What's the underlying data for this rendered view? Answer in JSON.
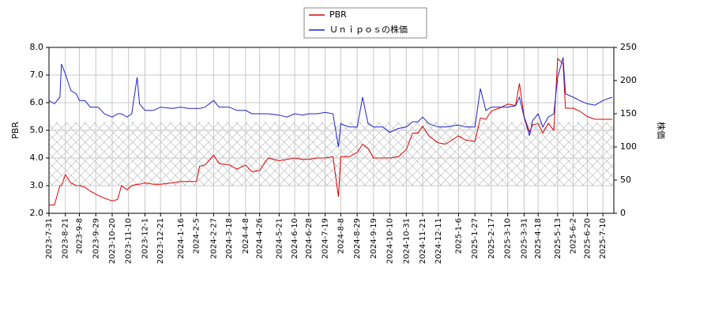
{
  "chart_data": {
    "type": "line",
    "legend": "top",
    "y_label": "PBR",
    "y2_label": "株価",
    "grid": true,
    "shaded_range": [
      3.0,
      5.3
    ],
    "xlim": [
      "2023-7-31",
      "2025-7-24"
    ],
    "ylim": [
      2.0,
      8.0
    ],
    "yticks": [
      {
        "value": 2,
        "label": "2.0"
      },
      {
        "value": 3,
        "label": "3.0"
      },
      {
        "value": 4,
        "label": "4.0"
      },
      {
        "value": 5,
        "label": "5.0"
      },
      {
        "value": 6,
        "label": "6.0"
      },
      {
        "value": 7,
        "label": "7.0"
      },
      {
        "value": 8,
        "label": "8.0"
      }
    ],
    "y2lim": [
      0,
      250
    ],
    "y2ticks": [
      0,
      50,
      100,
      150,
      200,
      250
    ],
    "xticks": [
      "2023-7-31",
      "2023-8-21",
      "2023-9-8",
      "2023-9-29",
      "2023-10-20",
      "2023-11-10",
      "2023-12-1",
      "2023-12-21",
      "2024-1-16",
      "2024-2-5",
      "2024-2-27",
      "2024-3-18",
      "2024-4-8",
      "2024-4-26",
      "2024-5-21",
      "2024-6-10",
      "2024-6-28",
      "2024-7-19",
      "2024-8-8",
      "2024-8-29",
      "2024-9-19",
      "2024-10-10",
      "2024-10-31",
      "2024-11-21",
      "2024-12-11",
      "2025-1-6",
      "2025-1-27",
      "2025-2-17",
      "2025-3-10",
      "2025-3-31",
      "2025-4-18",
      "2025-5-13",
      "2025-6-2",
      "2025-6-20",
      "2025-7-10"
    ],
    "x": [
      "2023-7-31",
      "2023-8-7",
      "2023-8-14",
      "2023-8-16",
      "2023-8-21",
      "2023-8-28",
      "2023-9-4",
      "2023-9-8",
      "2023-9-15",
      "2023-9-22",
      "2023-10-2",
      "2023-10-10",
      "2023-10-20",
      "2023-10-27",
      "2023-11-1",
      "2023-11-8",
      "2023-11-14",
      "2023-11-21",
      "2023-11-24",
      "2023-12-1",
      "2023-12-12",
      "2023-12-21",
      "2024-1-5",
      "2024-1-16",
      "2024-1-26",
      "2024-2-5",
      "2024-2-9",
      "2024-2-16",
      "2024-2-27",
      "2024-3-5",
      "2024-3-18",
      "2024-3-28",
      "2024-4-8",
      "2024-4-16",
      "2024-4-26",
      "2024-5-7",
      "2024-5-21",
      "2024-5-31",
      "2024-6-10",
      "2024-6-20",
      "2024-6-28",
      "2024-7-9",
      "2024-7-19",
      "2024-7-29",
      "2024-8-5",
      "2024-8-8",
      "2024-8-19",
      "2024-8-29",
      "2024-9-5",
      "2024-9-12",
      "2024-9-19",
      "2024-10-1",
      "2024-10-10",
      "2024-10-21",
      "2024-10-31",
      "2024-11-8",
      "2024-11-15",
      "2024-11-21",
      "2024-11-29",
      "2024-12-11",
      "2024-12-20",
      "2025-1-6",
      "2025-1-15",
      "2025-1-27",
      "2025-2-3",
      "2025-2-10",
      "2025-2-17",
      "2025-2-27",
      "2025-3-10",
      "2025-3-20",
      "2025-3-25",
      "2025-3-31",
      "2025-4-7",
      "2025-4-11",
      "2025-4-18",
      "2025-4-24",
      "2025-5-1",
      "2025-5-8",
      "2025-5-13",
      "2025-5-20",
      "2025-5-23",
      "2025-6-2",
      "2025-6-10",
      "2025-6-20",
      "2025-6-30",
      "2025-7-10",
      "2025-7-22"
    ],
    "series": [
      {
        "name": "PBR",
        "color": "#dd0000",
        "values": [
          2.3,
          2.3,
          3.0,
          3.0,
          3.4,
          3.1,
          3.0,
          3.0,
          2.95,
          2.8,
          2.65,
          2.55,
          2.45,
          2.5,
          3.0,
          2.85,
          3.0,
          3.05,
          3.05,
          3.1,
          3.05,
          3.05,
          3.1,
          3.15,
          3.15,
          3.15,
          3.7,
          3.75,
          4.1,
          3.8,
          3.75,
          3.6,
          3.75,
          3.5,
          3.55,
          4.0,
          3.9,
          3.95,
          4.0,
          3.95,
          3.95,
          4.0,
          4.0,
          4.05,
          2.6,
          4.05,
          4.05,
          4.2,
          4.5,
          4.35,
          4.0,
          4.0,
          4.0,
          4.05,
          4.3,
          4.9,
          4.9,
          5.15,
          4.8,
          4.55,
          4.5,
          4.8,
          4.65,
          4.6,
          5.45,
          5.4,
          5.7,
          5.8,
          5.95,
          5.9,
          6.7,
          5.5,
          4.95,
          5.2,
          5.25,
          4.9,
          5.25,
          5.0,
          7.6,
          7.4,
          5.8,
          5.8,
          5.7,
          5.5,
          5.4,
          5.4,
          5.4
        ]
      },
      {
        "name": "Ｕｎｉｐｏｓの株価",
        "color": "#2222cc",
        "axis": "y2",
        "values": [
          170,
          165,
          175,
          225,
          210,
          185,
          180,
          170,
          170,
          160,
          160,
          150,
          145,
          150,
          150,
          145,
          150,
          205,
          165,
          155,
          155,
          160,
          158,
          160,
          158,
          158,
          158,
          160,
          170,
          160,
          160,
          155,
          155,
          150,
          150,
          150,
          148,
          145,
          150,
          148,
          150,
          150,
          152,
          150,
          100,
          135,
          130,
          130,
          175,
          135,
          130,
          130,
          122,
          128,
          130,
          138,
          138,
          145,
          135,
          130,
          130,
          133,
          130,
          130,
          188,
          155,
          160,
          160,
          160,
          162,
          175,
          145,
          117,
          140,
          150,
          130,
          145,
          150,
          205,
          235,
          180,
          175,
          170,
          165,
          163,
          170,
          175
        ]
      }
    ]
  }
}
